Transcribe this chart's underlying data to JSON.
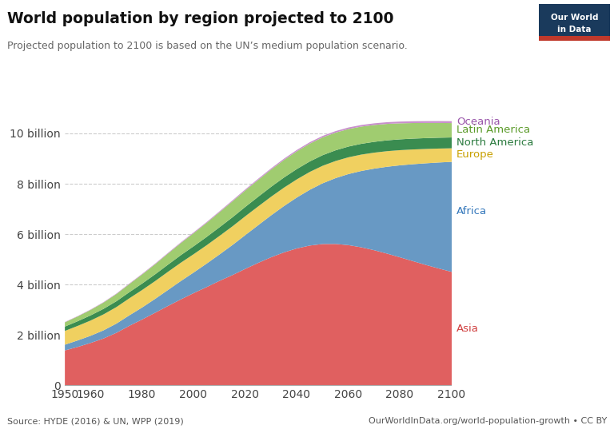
{
  "title": "World population by region projected to 2100",
  "subtitle": "Projected population to 2100 is based on the UN’s medium population scenario.",
  "source_left": "Source: HYDE (2016) & UN, WPP (2019)",
  "source_right": "OurWorldInData.org/world-population-growth • CC BY",
  "logo_text1": "Our World",
  "logo_text2": "in Data",
  "logo_bg": "#1a3a5c",
  "logo_red": "#c0392b",
  "years": [
    1950,
    1955,
    1960,
    1965,
    1970,
    1975,
    1980,
    1985,
    1990,
    1995,
    2000,
    2005,
    2010,
    2015,
    2020,
    2025,
    2030,
    2035,
    2040,
    2045,
    2050,
    2055,
    2060,
    2065,
    2070,
    2075,
    2080,
    2085,
    2090,
    2095,
    2100
  ],
  "asia": [
    1402,
    1542,
    1700,
    1877,
    2102,
    2379,
    2632,
    2897,
    3168,
    3430,
    3680,
    3917,
    4165,
    4393,
    4641,
    4878,
    5101,
    5294,
    5452,
    5565,
    5626,
    5628,
    5581,
    5494,
    5378,
    5243,
    5096,
    4945,
    4795,
    4654,
    4520
  ],
  "africa": [
    228,
    259,
    285,
    323,
    366,
    416,
    477,
    551,
    634,
    728,
    819,
    933,
    1049,
    1194,
    1341,
    1497,
    1664,
    1840,
    2022,
    2214,
    2411,
    2613,
    2822,
    3031,
    3240,
    3449,
    3653,
    3848,
    4034,
    4207,
    4367
  ],
  "europe": [
    547,
    576,
    605,
    634,
    656,
    676,
    694,
    706,
    722,
    728,
    727,
    728,
    736,
    741,
    748,
    745,
    739,
    731,
    720,
    709,
    695,
    680,
    665,
    650,
    634,
    618,
    601,
    585,
    569,
    553,
    537
  ],
  "north_america": [
    172,
    186,
    204,
    219,
    232,
    243,
    256,
    269,
    283,
    300,
    315,
    330,
    344,
    358,
    371,
    383,
    393,
    402,
    410,
    416,
    421,
    424,
    426,
    428,
    429,
    430,
    430,
    430,
    430,
    430,
    430
  ],
  "latin_america": [
    168,
    191,
    218,
    250,
    286,
    323,
    362,
    401,
    441,
    480,
    521,
    559,
    597,
    634,
    653,
    670,
    685,
    697,
    705,
    708,
    707,
    703,
    695,
    683,
    669,
    653,
    635,
    618,
    601,
    585,
    570
  ],
  "oceania": [
    13,
    14,
    16,
    17,
    19,
    21,
    23,
    25,
    27,
    29,
    31,
    33,
    36,
    39,
    42,
    45,
    47,
    50,
    52,
    54,
    57,
    59,
    61,
    63,
    65,
    67,
    69,
    71,
    73,
    74,
    76
  ],
  "colors": {
    "asia": "#e06060",
    "africa": "#6899c4",
    "europe": "#f0d060",
    "north_america": "#3a8c50",
    "latin_america": "#a0cc70",
    "oceania": "#c890cc"
  },
  "label_colors": {
    "asia": "#d04040",
    "africa": "#3377bb",
    "europe": "#c8a000",
    "north_america": "#2a7a3e",
    "latin_america": "#5a9a28",
    "oceania": "#9955aa"
  },
  "region_labels": {
    "asia": "Asia",
    "africa": "Africa",
    "europe": "Europe",
    "north_america": "North America",
    "latin_america": "Latin America",
    "oceania": "Oceania"
  },
  "yticks": [
    0,
    2000,
    4000,
    6000,
    8000,
    10000
  ],
  "ytick_labels": [
    "0",
    "2 billion",
    "4 billion",
    "6 billion",
    "8 billion",
    "10 billion"
  ],
  "ylim": [
    0,
    12200
  ],
  "xlim": [
    1950,
    2100
  ],
  "xticks": [
    1950,
    1960,
    1980,
    2000,
    2020,
    2040,
    2060,
    2080,
    2100
  ],
  "xtick_labels": [
    "1950",
    "1960",
    "1980",
    "2000",
    "2020",
    "2040",
    "2060",
    "2080",
    "2100"
  ],
  "background_color": "#ffffff",
  "grid_color": "#cccccc"
}
